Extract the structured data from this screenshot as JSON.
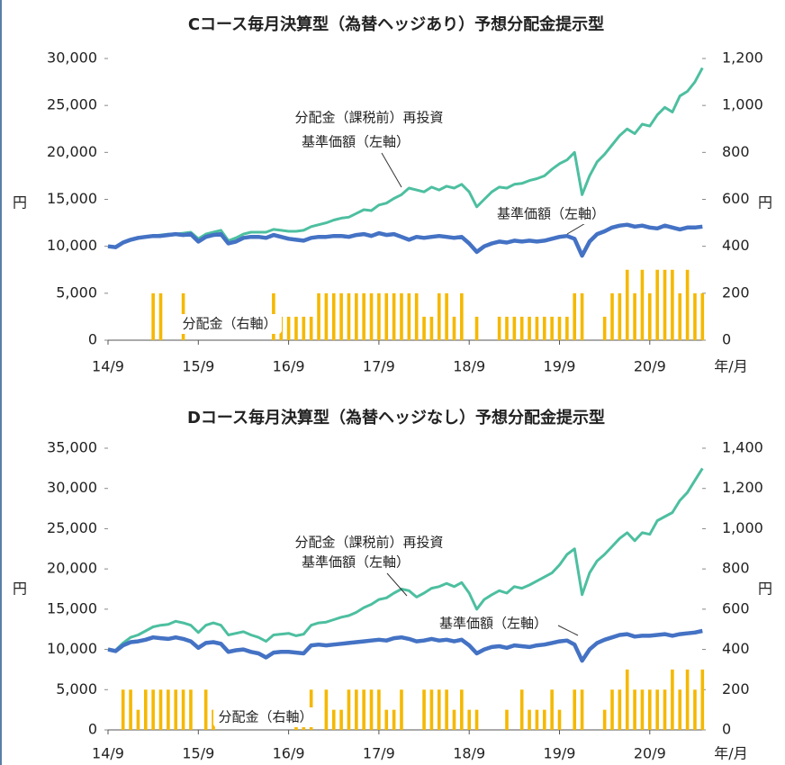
{
  "chart_data": [
    {
      "type": "combo",
      "title": "Cコース毎月決算型（為替ヘッジあり）予想分配金提示型",
      "y_label": "円",
      "y2_label": "円",
      "x_label": "年/月",
      "x": [
        "14/9",
        "14/10",
        "14/11",
        "14/12",
        "15/1",
        "15/2",
        "15/3",
        "15/4",
        "15/5",
        "15/6",
        "15/7",
        "15/8",
        "15/9",
        "15/10",
        "15/11",
        "15/12",
        "16/1",
        "16/2",
        "16/3",
        "16/4",
        "16/5",
        "16/6",
        "16/7",
        "16/8",
        "16/9",
        "16/10",
        "16/11",
        "16/12",
        "17/1",
        "17/2",
        "17/3",
        "17/4",
        "17/5",
        "17/6",
        "17/7",
        "17/8",
        "17/9",
        "17/10",
        "17/11",
        "17/12",
        "18/1",
        "18/2",
        "18/3",
        "18/4",
        "18/5",
        "18/6",
        "18/7",
        "18/8",
        "18/9",
        "18/10",
        "18/11",
        "18/12",
        "19/1",
        "19/2",
        "19/3",
        "19/4",
        "19/5",
        "19/6",
        "19/7",
        "19/8",
        "19/9",
        "19/10",
        "19/11",
        "19/12",
        "20/1",
        "20/2",
        "20/3",
        "20/4",
        "20/5",
        "20/6",
        "20/7",
        "20/8",
        "20/9",
        "20/10",
        "20/11",
        "20/12",
        "21/1",
        "21/2",
        "21/3",
        "21/4"
      ],
      "xticks": [
        "14/9",
        "15/9",
        "16/9",
        "17/9",
        "18/9",
        "19/9",
        "20/9"
      ],
      "ylim": [
        0,
        30000
      ],
      "yticks": [
        0,
        {
          "value": 5000,
          "label": "5,000"
        },
        {
          "value": 10000,
          "label": "10,000"
        },
        {
          "value": 15000,
          "label": "15,000"
        },
        {
          "value": 20000,
          "label": "20,000"
        },
        {
          "value": 25000,
          "label": "25,000"
        },
        {
          "value": 30000,
          "label": "30,000"
        }
      ],
      "y2lim": [
        0,
        1200
      ],
      "y2ticks": [
        0,
        200,
        400,
        600,
        800,
        {
          "value": 1000,
          "label": "1,000"
        },
        {
          "value": 1200,
          "label": "1,200"
        }
      ],
      "series": [
        {
          "name": "分配金（右軸）",
          "type": "bar",
          "axis": "y2",
          "color": "#f5b800",
          "values": [
            0,
            0,
            0,
            0,
            0,
            0,
            200,
            200,
            0,
            0,
            200,
            0,
            0,
            0,
            0,
            0,
            0,
            0,
            0,
            0,
            0,
            0,
            200,
            100,
            100,
            100,
            100,
            100,
            200,
            200,
            200,
            200,
            200,
            200,
            200,
            200,
            200,
            200,
            200,
            200,
            200,
            200,
            100,
            100,
            200,
            200,
            100,
            200,
            0,
            100,
            0,
            0,
            100,
            100,
            100,
            100,
            100,
            100,
            100,
            100,
            100,
            100,
            200,
            200,
            0,
            0,
            100,
            200,
            200,
            300,
            200,
            300,
            200,
            300,
            300,
            300,
            200,
            300,
            200,
            200
          ]
        },
        {
          "name": [
            "分配金（課税前）再投資",
            "基準価額（左軸）"
          ],
          "type": "line",
          "color": "#4dbfa0",
          "values": [
            10000,
            9900,
            10400,
            10700,
            10900,
            11000,
            11100,
            11200,
            11300,
            11300,
            11400,
            11500,
            10800,
            11300,
            11500,
            11700,
            10600,
            10900,
            11300,
            11500,
            11500,
            11500,
            11800,
            11700,
            11600,
            11600,
            11700,
            12100,
            12300,
            12500,
            12800,
            13000,
            13100,
            13500,
            13900,
            13800,
            14400,
            14600,
            15100,
            15500,
            16200,
            16000,
            15800,
            16300,
            16000,
            16400,
            16200,
            16600,
            15800,
            14200,
            15000,
            15800,
            16300,
            16200,
            16600,
            16700,
            17000,
            17200,
            17500,
            18200,
            18800,
            19200,
            20000,
            15500,
            17500,
            19000,
            19800,
            20800,
            21800,
            22500,
            22000,
            23000,
            22800,
            24000,
            24800,
            24300,
            26000,
            26500,
            27500,
            29000
          ]
        },
        {
          "name": "基準価額（左軸）",
          "type": "line",
          "color": "#4472c4",
          "values": [
            10000,
            9900,
            10400,
            10700,
            10900,
            11000,
            11100,
            11100,
            11200,
            11300,
            11200,
            11300,
            10500,
            11000,
            11200,
            11300,
            10300,
            10500,
            10900,
            11000,
            11000,
            10900,
            11200,
            11000,
            10800,
            10700,
            10600,
            10900,
            11000,
            11000,
            11100,
            11100,
            11000,
            11200,
            11300,
            11100,
            11400,
            11200,
            11300,
            11000,
            10700,
            11000,
            10900,
            11000,
            11100,
            11000,
            10900,
            11000,
            10300,
            9400,
            10000,
            10300,
            10500,
            10400,
            10600,
            10500,
            10600,
            10500,
            10600,
            10800,
            11000,
            11100,
            10800,
            9000,
            10500,
            11300,
            11600,
            12000,
            12200,
            12300,
            12100,
            12200,
            12000,
            11900,
            12200,
            12000,
            11800,
            12000,
            12000,
            12100
          ]
        }
      ]
    },
    {
      "type": "combo",
      "title": "Dコース毎月決算型（為替ヘッジなし）予想分配金提示型",
      "y_label": "円",
      "y2_label": "円",
      "x_label": "年/月",
      "x": [
        "14/9",
        "14/10",
        "14/11",
        "14/12",
        "15/1",
        "15/2",
        "15/3",
        "15/4",
        "15/5",
        "15/6",
        "15/7",
        "15/8",
        "15/9",
        "15/10",
        "15/11",
        "15/12",
        "16/1",
        "16/2",
        "16/3",
        "16/4",
        "16/5",
        "16/6",
        "16/7",
        "16/8",
        "16/9",
        "16/10",
        "16/11",
        "16/12",
        "17/1",
        "17/2",
        "17/3",
        "17/4",
        "17/5",
        "17/6",
        "17/7",
        "17/8",
        "17/9",
        "17/10",
        "17/11",
        "17/12",
        "18/1",
        "18/2",
        "18/3",
        "18/4",
        "18/5",
        "18/6",
        "18/7",
        "18/8",
        "18/9",
        "18/10",
        "18/11",
        "18/12",
        "19/1",
        "19/2",
        "19/3",
        "19/4",
        "19/5",
        "19/6",
        "19/7",
        "19/8",
        "19/9",
        "19/10",
        "19/11",
        "19/12",
        "20/1",
        "20/2",
        "20/3",
        "20/4",
        "20/5",
        "20/6",
        "20/7",
        "20/8",
        "20/9",
        "20/10",
        "20/11",
        "20/12",
        "21/1",
        "21/2",
        "21/3",
        "21/4"
      ],
      "xticks": [
        "14/9",
        "15/9",
        "16/9",
        "17/9",
        "18/9",
        "19/9",
        "20/9"
      ],
      "ylim": [
        0,
        35000
      ],
      "yticks": [
        0,
        {
          "value": 5000,
          "label": "5,000"
        },
        {
          "value": 10000,
          "label": "10,000"
        },
        {
          "value": 15000,
          "label": "15,000"
        },
        {
          "value": 20000,
          "label": "20,000"
        },
        {
          "value": 25000,
          "label": "25,000"
        },
        {
          "value": 30000,
          "label": "30,000"
        },
        {
          "value": 35000,
          "label": "35,000"
        }
      ],
      "y2lim": [
        0,
        1400
      ],
      "y2ticks": [
        0,
        200,
        400,
        600,
        800,
        {
          "value": 1000,
          "label": "1,000"
        },
        {
          "value": 1200,
          "label": "1,200"
        },
        {
          "value": 1400,
          "label": "1,400"
        }
      ],
      "series": [
        {
          "name": "分配金（右軸）",
          "type": "bar",
          "axis": "y2",
          "color": "#f5b800",
          "values": [
            0,
            0,
            200,
            200,
            100,
            200,
            200,
            200,
            200,
            200,
            200,
            200,
            0,
            200,
            100,
            0,
            0,
            0,
            0,
            0,
            0,
            0,
            0,
            0,
            0,
            100,
            100,
            200,
            0,
            200,
            100,
            100,
            200,
            200,
            200,
            200,
            200,
            100,
            100,
            200,
            0,
            0,
            200,
            200,
            200,
            200,
            100,
            200,
            100,
            100,
            0,
            0,
            0,
            100,
            0,
            200,
            100,
            100,
            100,
            200,
            100,
            0,
            200,
            200,
            0,
            0,
            100,
            200,
            200,
            300,
            200,
            200,
            200,
            200,
            200,
            300,
            200,
            300,
            200,
            300
          ]
        },
        {
          "name": [
            "分配金（課税前）再投資",
            "基準価額（左軸）"
          ],
          "type": "line",
          "color": "#4dbfa0",
          "values": [
            10000,
            9900,
            10800,
            11500,
            11800,
            12300,
            12800,
            13000,
            13100,
            13500,
            13300,
            13000,
            12100,
            13000,
            13300,
            13000,
            11800,
            12000,
            12200,
            11800,
            11500,
            11000,
            11800,
            11900,
            12000,
            11700,
            11900,
            13000,
            13300,
            13400,
            13700,
            14000,
            14200,
            14600,
            15200,
            15600,
            16200,
            16400,
            17000,
            17500,
            17300,
            16500,
            17000,
            17600,
            17800,
            18200,
            17800,
            18300,
            17000,
            15000,
            16200,
            16800,
            17300,
            17000,
            17800,
            17600,
            18000,
            18500,
            19000,
            19500,
            20500,
            21800,
            22500,
            16800,
            19500,
            21000,
            21800,
            22800,
            23800,
            24500,
            23500,
            24500,
            24300,
            26000,
            26500,
            27000,
            28500,
            29500,
            31000,
            32500
          ]
        },
        {
          "name": "基準価額（左軸）",
          "type": "line",
          "color": "#4472c4",
          "values": [
            10000,
            9800,
            10500,
            10900,
            11000,
            11200,
            11500,
            11400,
            11300,
            11500,
            11300,
            11000,
            10200,
            10800,
            10900,
            10700,
            9700,
            9900,
            10000,
            9700,
            9500,
            9000,
            9600,
            9700,
            9700,
            9600,
            9500,
            10500,
            10600,
            10500,
            10600,
            10700,
            10800,
            10900,
            11000,
            11100,
            11200,
            11100,
            11400,
            11500,
            11300,
            11000,
            11100,
            11300,
            11100,
            11200,
            11000,
            11200,
            10500,
            9500,
            10000,
            10300,
            10400,
            10200,
            10500,
            10400,
            10300,
            10500,
            10600,
            10800,
            11000,
            11100,
            10600,
            8600,
            10000,
            10800,
            11200,
            11500,
            11800,
            11900,
            11600,
            11700,
            11700,
            11800,
            11900,
            11700,
            11900,
            12000,
            12100,
            12300
          ]
        }
      ]
    }
  ]
}
